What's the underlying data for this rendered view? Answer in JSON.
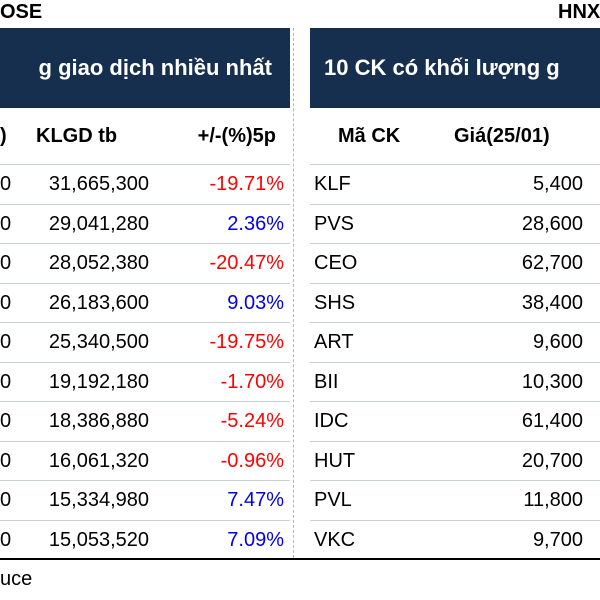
{
  "top": {
    "left_label": "OSE",
    "right_label": "HNX"
  },
  "left_table": {
    "title": "g giao dịch nhiều nhất",
    "headers": {
      "price": ")",
      "volume": "KLGD tb",
      "change": "+/-(%)5p"
    },
    "rows": [
      {
        "price": "0",
        "volume": "31,665,300",
        "change": "-19.71%",
        "dir": "neg"
      },
      {
        "price": "0",
        "volume": "29,041,280",
        "change": "2.36%",
        "dir": "pos"
      },
      {
        "price": "0",
        "volume": "28,052,380",
        "change": "-20.47%",
        "dir": "neg"
      },
      {
        "price": "0",
        "volume": "26,183,600",
        "change": "9.03%",
        "dir": "pos"
      },
      {
        "price": "0",
        "volume": "25,340,500",
        "change": "-19.75%",
        "dir": "neg"
      },
      {
        "price": "0",
        "volume": "19,192,180",
        "change": "-1.70%",
        "dir": "neg"
      },
      {
        "price": "0",
        "volume": "18,386,880",
        "change": "-5.24%",
        "dir": "neg"
      },
      {
        "price": "0",
        "volume": "16,061,320",
        "change": "-0.96%",
        "dir": "neg"
      },
      {
        "price": "0",
        "volume": "15,334,980",
        "change": "7.47%",
        "dir": "pos"
      },
      {
        "price": "0",
        "volume": "15,053,520",
        "change": "7.09%",
        "dir": "pos"
      }
    ]
  },
  "right_table": {
    "title": "10 CK có khối lượng g",
    "headers": {
      "code": "Mã CK",
      "price": "Giá(25/01)"
    },
    "rows": [
      {
        "code": "KLF",
        "price": "5,400"
      },
      {
        "code": "PVS",
        "price": "28,600"
      },
      {
        "code": "CEO",
        "price": "62,700"
      },
      {
        "code": "SHS",
        "price": "38,400"
      },
      {
        "code": "ART",
        "price": "9,600"
      },
      {
        "code": "BII",
        "price": "10,300"
      },
      {
        "code": "IDC",
        "price": "61,400"
      },
      {
        "code": "HUT",
        "price": "20,700"
      },
      {
        "code": "PVL",
        "price": "11,800"
      },
      {
        "code": "VKC",
        "price": "9,700"
      }
    ]
  },
  "footer": {
    "source": "uce"
  },
  "colors": {
    "banner": "#162f4f",
    "negative": "#ff0000",
    "positive": "#0000ee"
  }
}
